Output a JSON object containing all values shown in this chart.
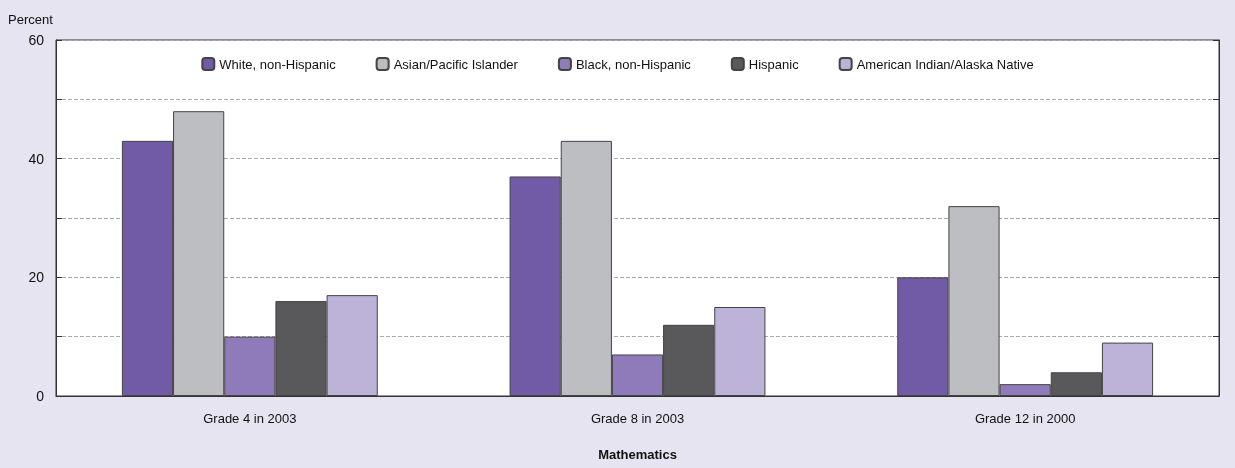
{
  "chart_data": {
    "type": "bar",
    "xlabel": "Mathematics",
    "ylabel": "Percent",
    "categories": [
      "Grade 4 in 2003",
      "Grade 8 in 2003",
      "Grade 12 in 2000"
    ],
    "series": [
      {
        "name": "White, non-Hispanic",
        "color": "#725ba6",
        "values": [
          43,
          37,
          20
        ]
      },
      {
        "name": "Asian/Pacific Islander",
        "color": "#bdbec2",
        "values": [
          48,
          43,
          32
        ]
      },
      {
        "name": "Black, non-Hispanic",
        "color": "#8f7bb9",
        "values": [
          10,
          7,
          2
        ]
      },
      {
        "name": "Hispanic",
        "color": "#59595b",
        "values": [
          16,
          12,
          4
        ]
      },
      {
        "name": "American Indian/Alaska Native",
        "color": "#bdb3d8",
        "values": [
          17,
          15,
          9
        ]
      }
    ],
    "ylim": [
      0,
      60
    ],
    "yticks": [
      0,
      {
        "value": 10,
        "label": null
      },
      20,
      {
        "value": 30,
        "label": null
      },
      40,
      {
        "value": 50,
        "label": null
      },
      60
    ],
    "grid": "y",
    "legend": "top"
  }
}
